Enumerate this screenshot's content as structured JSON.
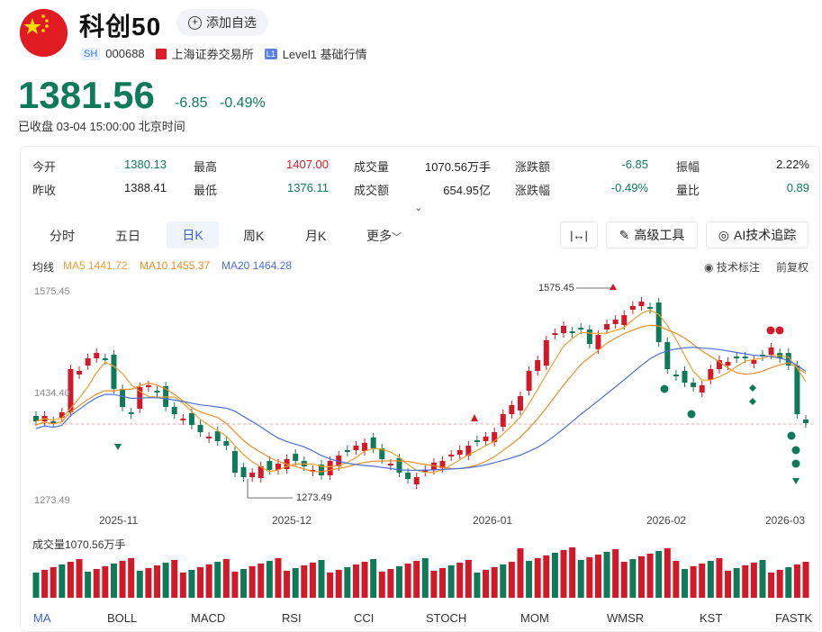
{
  "header": {
    "name": "科创50",
    "add_watch": "添加自选",
    "market_tag": "SH",
    "code": "000688",
    "exchange": "上海证券交易所",
    "level_tag": "L1",
    "level_text": "Level1 基础行情"
  },
  "quote": {
    "price": "1381.56",
    "change": "-6.85",
    "change_pct": "-0.49%",
    "status": "已收盘 03-04 15:00:00 北京时间"
  },
  "stats": [
    {
      "label": "今开",
      "value": "1380.13",
      "color": "green"
    },
    {
      "label": "最高",
      "value": "1407.00",
      "color": "red"
    },
    {
      "label": "成交量",
      "value": "1070.56万手",
      "color": "dark"
    },
    {
      "label": "涨跌额",
      "value": "-6.85",
      "color": "green"
    },
    {
      "label": "振幅",
      "value": "2.22%",
      "color": "dark"
    },
    {
      "label": "昨收",
      "value": "1388.41",
      "color": "dark"
    },
    {
      "label": "最低",
      "value": "1376.11",
      "color": "green"
    },
    {
      "label": "成交额",
      "value": "654.95亿",
      "color": "dark"
    },
    {
      "label": "涨跌幅",
      "value": "-0.49%",
      "color": "green"
    },
    {
      "label": "量比",
      "value": "0.89",
      "color": "green"
    }
  ],
  "tabs": [
    "分时",
    "五日",
    "日K",
    "周K",
    "月K",
    "更多"
  ],
  "tools": {
    "range": "",
    "advanced": "高级工具",
    "ai": "AI技术追踪"
  },
  "ma": {
    "label": "均线",
    "ma5": "MA5 1441.72",
    "ma10": "MA10 1455.37",
    "ma20": "MA20 1464.28",
    "tech_mark": "技术标注",
    "adjust": "前复权"
  },
  "colors": {
    "up": "#d01a2a",
    "down": "#0f7a5a",
    "ma5": "#f0a030",
    "ma10": "#f08c28",
    "ma20": "#4a6fd8"
  },
  "chart_data": {
    "type": "candlestick",
    "y_max_label": "1575.45",
    "y_min_label": "1273.49",
    "y_mid_label": "1434.40",
    "ylim": [
      1273.49,
      1575.45
    ],
    "high_annotation": "1575.45",
    "low_annotation": "1273.49",
    "x_labels": [
      "2025-11",
      "2025-12",
      "2026-01",
      "2026-02",
      "2026-03"
    ],
    "volume_label": "成交量1070.56万手"
  },
  "indicators": [
    "MA",
    "BOLL",
    "MACD",
    "RSI",
    "CCI",
    "STOCH",
    "MOM",
    "WMSR",
    "KST",
    "FASTK"
  ]
}
